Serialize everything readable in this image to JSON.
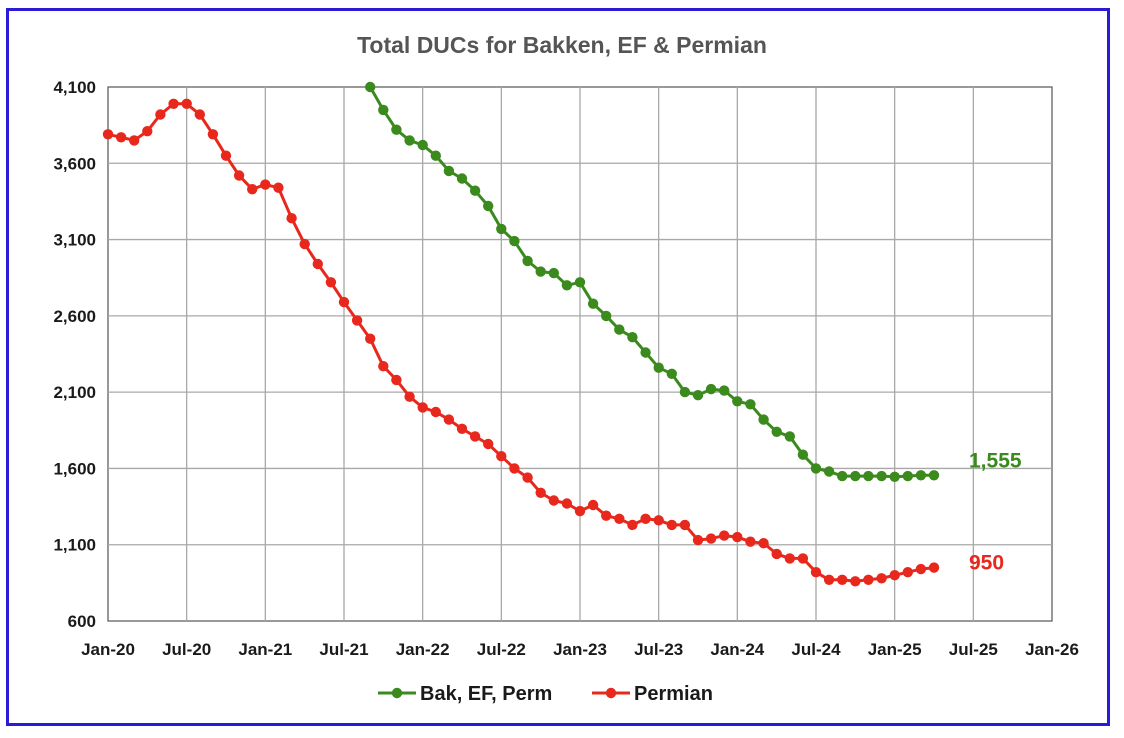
{
  "chart_data": {
    "type": "line",
    "title": "Total DUCs for Bakken, EF & Permian",
    "xlabel": "",
    "ylabel": "",
    "ylim": [
      600,
      4100
    ],
    "yticks": [
      600,
      1100,
      1600,
      2100,
      2600,
      3100,
      3600,
      4100
    ],
    "ytick_labels": [
      "600",
      "1,100",
      "1,600",
      "2,100",
      "2,600",
      "3,100",
      "3,600",
      "4,100"
    ],
    "xlim": [
      "2020-01",
      "2026-01"
    ],
    "xtick_labels": [
      "Jan-20",
      "Jul-20",
      "Jan-21",
      "Jul-21",
      "Jan-22",
      "Jul-22",
      "Jan-23",
      "Jul-23",
      "Jan-24",
      "Jul-24",
      "Jan-25",
      "Jul-25",
      "Jan-26"
    ],
    "grid": true,
    "legend": "bottom",
    "series": [
      {
        "name": "Bak, EF, Perm",
        "color": "#3a8a1e",
        "end_label": "1,555",
        "x": [
          "2021-09",
          "2021-10",
          "2021-11",
          "2021-12",
          "2022-01",
          "2022-02",
          "2022-03",
          "2022-04",
          "2022-05",
          "2022-06",
          "2022-07",
          "2022-08",
          "2022-09",
          "2022-10",
          "2022-11",
          "2022-12",
          "2023-01",
          "2023-02",
          "2023-03",
          "2023-04",
          "2023-05",
          "2023-06",
          "2023-07",
          "2023-08",
          "2023-09",
          "2023-10",
          "2023-11",
          "2023-12",
          "2024-01",
          "2024-02",
          "2024-03",
          "2024-04",
          "2024-05",
          "2024-06",
          "2024-07",
          "2024-08",
          "2024-09",
          "2024-10",
          "2024-11",
          "2024-12",
          "2025-01",
          "2025-02",
          "2025-03",
          "2025-04"
        ],
        "values": [
          4100,
          3950,
          3820,
          3750,
          3720,
          3650,
          3550,
          3500,
          3420,
          3320,
          3170,
          3090,
          2960,
          2890,
          2880,
          2800,
          2820,
          2680,
          2600,
          2510,
          2460,
          2360,
          2260,
          2220,
          2100,
          2080,
          2120,
          2110,
          2040,
          2020,
          1920,
          1840,
          1810,
          1690,
          1600,
          1580,
          1550,
          1550,
          1550,
          1550,
          1545,
          1550,
          1555,
          1555
        ]
      },
      {
        "name": "Permian",
        "color": "#e8281c",
        "end_label": "950",
        "x": [
          "2020-01",
          "2020-02",
          "2020-03",
          "2020-04",
          "2020-05",
          "2020-06",
          "2020-07",
          "2020-08",
          "2020-09",
          "2020-10",
          "2020-11",
          "2020-12",
          "2021-01",
          "2021-02",
          "2021-03",
          "2021-04",
          "2021-05",
          "2021-06",
          "2021-07",
          "2021-08",
          "2021-09",
          "2021-10",
          "2021-11",
          "2021-12",
          "2022-01",
          "2022-02",
          "2022-03",
          "2022-04",
          "2022-05",
          "2022-06",
          "2022-07",
          "2022-08",
          "2022-09",
          "2022-10",
          "2022-11",
          "2022-12",
          "2023-01",
          "2023-02",
          "2023-03",
          "2023-04",
          "2023-05",
          "2023-06",
          "2023-07",
          "2023-08",
          "2023-09",
          "2023-10",
          "2023-11",
          "2023-12",
          "2024-01",
          "2024-02",
          "2024-03",
          "2024-04",
          "2024-05",
          "2024-06",
          "2024-07",
          "2024-08",
          "2024-09",
          "2024-10",
          "2024-11",
          "2024-12",
          "2025-01",
          "2025-02",
          "2025-03",
          "2025-04"
        ],
        "values": [
          3790,
          3770,
          3750,
          3810,
          3920,
          3990,
          3990,
          3920,
          3790,
          3650,
          3520,
          3430,
          3460,
          3440,
          3240,
          3070,
          2940,
          2820,
          2690,
          2570,
          2450,
          2270,
          2180,
          2070,
          2000,
          1970,
          1920,
          1860,
          1810,
          1760,
          1680,
          1600,
          1540,
          1440,
          1390,
          1370,
          1320,
          1360,
          1290,
          1270,
          1230,
          1270,
          1260,
          1230,
          1230,
          1130,
          1140,
          1160,
          1150,
          1120,
          1110,
          1040,
          1010,
          1010,
          920,
          870,
          870,
          860,
          870,
          880,
          900,
          920,
          940,
          950
        ]
      }
    ]
  }
}
